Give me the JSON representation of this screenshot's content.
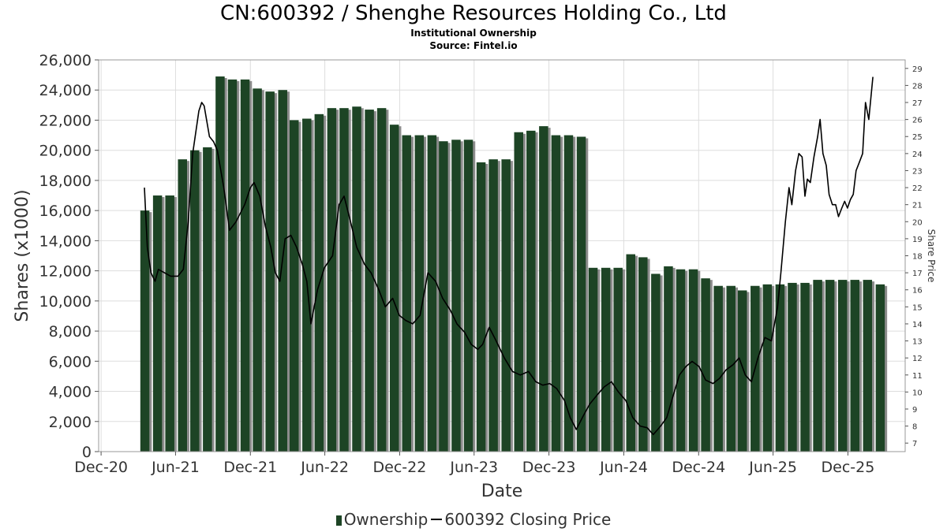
{
  "title": "CN:600392 / Shenghe Resources Holding Co., Ltd",
  "subtitle": "Institutional Ownership",
  "source": "Source: Fintel.io",
  "legend": {
    "ownership": "Ownership",
    "price": "600392 Closing Price"
  },
  "colors": {
    "bar": "#1d4425",
    "bar_shadow": "#8c8c8c",
    "price_line": "#000000",
    "grid": "#dddddd",
    "axis_text": "#333333"
  },
  "chart_data": {
    "type": "bar",
    "xlabel": "Date",
    "ylabel": "Shares (x1000)",
    "y2label": "Share Price",
    "ylim": [
      0,
      26000
    ],
    "y2lim": [
      6.5,
      29.5
    ],
    "y_ticks": [
      0,
      2000,
      4000,
      6000,
      8000,
      10000,
      12000,
      14000,
      16000,
      18000,
      20000,
      22000,
      24000,
      26000
    ],
    "y_tick_labels": [
      "0",
      "2,000",
      "4,000",
      "6,000",
      "8,000",
      "10,000",
      "12,000",
      "14,000",
      "16,000",
      "18,000",
      "20,000",
      "22,000",
      "24,000",
      "26,000"
    ],
    "y2_ticks": [
      7,
      8,
      9,
      10,
      11,
      12,
      13,
      14,
      15,
      16,
      17,
      18,
      19,
      20,
      21,
      22,
      23,
      24,
      25,
      26,
      27,
      28,
      29
    ],
    "xlim": [
      "2020-11-25",
      "2026-04-20"
    ],
    "x_ticks": [
      "2020-12-01",
      "2021-06-01",
      "2021-12-01",
      "2022-06-01",
      "2022-12-01",
      "2023-06-01",
      "2023-12-01",
      "2024-06-01",
      "2024-12-01",
      "2025-06-01",
      "2025-12-01"
    ],
    "x_tick_labels": [
      "Dec-20",
      "Jun-21",
      "Dec-21",
      "Jun-22",
      "Dec-22",
      "Jun-23",
      "Dec-23",
      "Jun-24",
      "Dec-24",
      "Jun-25",
      "Dec-25"
    ],
    "grid": true,
    "legend_position": "bottom",
    "series": [
      {
        "name": "Ownership",
        "type": "bar",
        "x": [
          "2021-03-18",
          "2021-04-18",
          "2021-05-18",
          "2021-06-18",
          "2021-07-18",
          "2021-08-18",
          "2021-09-18",
          "2021-10-18",
          "2021-11-18",
          "2021-12-18",
          "2022-01-18",
          "2022-02-18",
          "2022-03-18",
          "2022-04-18",
          "2022-05-18",
          "2022-06-18",
          "2022-07-18",
          "2022-08-18",
          "2022-09-18",
          "2022-10-18",
          "2022-11-18",
          "2022-12-18",
          "2023-01-18",
          "2023-02-18",
          "2023-03-18",
          "2023-04-18",
          "2023-05-18",
          "2023-06-18",
          "2023-07-18",
          "2023-08-18",
          "2023-09-18",
          "2023-10-18",
          "2023-11-18",
          "2023-12-18",
          "2024-01-18",
          "2024-02-18",
          "2024-03-18",
          "2024-04-18",
          "2024-05-18",
          "2024-06-18",
          "2024-07-18",
          "2024-08-18",
          "2024-09-18",
          "2024-10-18",
          "2024-11-18",
          "2024-12-18",
          "2025-01-18",
          "2025-02-18",
          "2025-03-18",
          "2025-04-18",
          "2025-05-18",
          "2025-06-18",
          "2025-07-18",
          "2025-08-18",
          "2025-09-18",
          "2025-10-18",
          "2025-11-18",
          "2025-12-18",
          "2026-01-18",
          "2026-02-18"
        ],
        "values": [
          16000,
          17000,
          17000,
          19400,
          20000,
          20200,
          24900,
          24700,
          24700,
          24100,
          23900,
          24000,
          22000,
          22100,
          22400,
          22800,
          22800,
          22900,
          22700,
          22800,
          21700,
          21000,
          21000,
          21000,
          20600,
          20700,
          20700,
          19200,
          19400,
          19400,
          21200,
          21300,
          21600,
          21000,
          21000,
          20900,
          12200,
          12200,
          12200,
          13100,
          12900,
          11800,
          12300,
          12100,
          12100,
          11500,
          11000,
          11000,
          10700,
          11000,
          11100,
          11100,
          11200,
          11200,
          11400,
          11400,
          11400,
          11400,
          11400,
          11100
        ]
      },
      {
        "name": "600392 Closing Price",
        "type": "line",
        "points": [
          [
            "2021-03-17",
            22.0
          ],
          [
            "2021-03-24",
            18.5
          ],
          [
            "2021-04-02",
            17.0
          ],
          [
            "2021-04-12",
            16.5
          ],
          [
            "2021-04-20",
            17.2
          ],
          [
            "2021-05-05",
            17.0
          ],
          [
            "2021-05-20",
            16.8
          ],
          [
            "2021-06-07",
            16.8
          ],
          [
            "2021-06-20",
            17.2
          ],
          [
            "2021-07-02",
            20.0
          ],
          [
            "2021-07-13",
            24.0
          ],
          [
            "2021-07-28",
            26.5
          ],
          [
            "2021-08-04",
            27.0
          ],
          [
            "2021-08-10",
            26.8
          ],
          [
            "2021-08-23",
            25.0
          ],
          [
            "2021-09-02",
            24.7
          ],
          [
            "2021-09-11",
            24.2
          ],
          [
            "2021-09-27",
            22.0
          ],
          [
            "2021-10-11",
            19.5
          ],
          [
            "2021-10-27",
            20.0
          ],
          [
            "2021-11-17",
            21.0
          ],
          [
            "2021-12-01",
            22.0
          ],
          [
            "2021-12-10",
            22.3
          ],
          [
            "2021-12-24",
            21.5
          ],
          [
            "2022-01-07",
            19.7
          ],
          [
            "2022-01-20",
            18.5
          ],
          [
            "2022-01-31",
            17.0
          ],
          [
            "2022-02-11",
            16.5
          ],
          [
            "2022-02-24",
            19.0
          ],
          [
            "2022-03-10",
            19.2
          ],
          [
            "2022-03-24",
            18.5
          ],
          [
            "2022-04-07",
            17.5
          ],
          [
            "2022-04-18",
            16.5
          ],
          [
            "2022-04-28",
            14.0
          ],
          [
            "2022-05-14",
            16.0
          ],
          [
            "2022-05-31",
            17.3
          ],
          [
            "2022-06-20",
            18.0
          ],
          [
            "2022-07-06",
            21.0
          ],
          [
            "2022-07-18",
            21.5
          ],
          [
            "2022-08-03",
            20.0
          ],
          [
            "2022-08-18",
            18.5
          ],
          [
            "2022-09-06",
            17.5
          ],
          [
            "2022-09-22",
            17.0
          ],
          [
            "2022-10-11",
            16.0
          ],
          [
            "2022-10-27",
            15.0
          ],
          [
            "2022-11-14",
            15.5
          ],
          [
            "2022-11-30",
            14.5
          ],
          [
            "2022-12-16",
            14.2
          ],
          [
            "2023-01-02",
            14.0
          ],
          [
            "2023-01-20",
            14.5
          ],
          [
            "2023-02-08",
            17.0
          ],
          [
            "2023-02-27",
            16.5
          ],
          [
            "2023-03-16",
            15.5
          ],
          [
            "2023-04-04",
            14.8
          ],
          [
            "2023-04-20",
            14.0
          ],
          [
            "2023-05-09",
            13.5
          ],
          [
            "2023-05-25",
            12.8
          ],
          [
            "2023-06-10",
            12.5
          ],
          [
            "2023-06-22",
            12.8
          ],
          [
            "2023-07-08",
            13.8
          ],
          [
            "2023-07-25",
            13.0
          ],
          [
            "2023-08-14",
            12.0
          ],
          [
            "2023-09-03",
            11.2
          ],
          [
            "2023-09-22",
            11.0
          ],
          [
            "2023-10-12",
            11.2
          ],
          [
            "2023-10-30",
            10.6
          ],
          [
            "2023-11-16",
            10.4
          ],
          [
            "2023-12-03",
            10.5
          ],
          [
            "2023-12-20",
            10.2
          ],
          [
            "2024-01-08",
            9.5
          ],
          [
            "2024-01-22",
            8.5
          ],
          [
            "2024-02-06",
            7.8
          ],
          [
            "2024-02-23",
            8.6
          ],
          [
            "2024-03-10",
            9.3
          ],
          [
            "2024-03-27",
            9.8
          ],
          [
            "2024-04-14",
            10.3
          ],
          [
            "2024-05-02",
            10.6
          ],
          [
            "2024-05-19",
            10.0
          ],
          [
            "2024-06-06",
            9.5
          ],
          [
            "2024-06-23",
            8.5
          ],
          [
            "2024-07-11",
            8.0
          ],
          [
            "2024-07-28",
            7.9
          ],
          [
            "2024-08-12",
            7.5
          ],
          [
            "2024-08-30",
            8.0
          ],
          [
            "2024-09-14",
            8.5
          ],
          [
            "2024-09-30",
            9.8
          ],
          [
            "2024-10-15",
            11.0
          ],
          [
            "2024-10-31",
            11.5
          ],
          [
            "2024-11-15",
            11.8
          ],
          [
            "2024-12-02",
            11.5
          ],
          [
            "2024-12-18",
            10.7
          ],
          [
            "2025-01-05",
            10.5
          ],
          [
            "2025-01-21",
            10.8
          ],
          [
            "2025-02-06",
            11.3
          ],
          [
            "2025-02-23",
            11.6
          ],
          [
            "2025-03-10",
            12.0
          ],
          [
            "2025-03-25",
            11.0
          ],
          [
            "2025-04-09",
            10.6
          ],
          [
            "2025-04-25",
            12.0
          ],
          [
            "2025-05-12",
            13.2
          ],
          [
            "2025-05-28",
            13.0
          ],
          [
            "2025-06-12",
            15.0
          ],
          [
            "2025-06-20",
            17.0
          ],
          [
            "2025-07-01",
            20.0
          ],
          [
            "2025-07-10",
            22.0
          ],
          [
            "2025-07-17",
            21.0
          ],
          [
            "2025-07-26",
            23.0
          ],
          [
            "2025-08-03",
            24.0
          ],
          [
            "2025-08-11",
            23.8
          ],
          [
            "2025-08-18",
            21.5
          ],
          [
            "2025-08-24",
            22.5
          ],
          [
            "2025-08-31",
            22.3
          ],
          [
            "2025-09-09",
            23.8
          ],
          [
            "2025-09-18",
            25.0
          ],
          [
            "2025-09-24",
            26.0
          ],
          [
            "2025-10-01",
            24.0
          ],
          [
            "2025-10-09",
            23.3
          ],
          [
            "2025-10-16",
            21.6
          ],
          [
            "2025-10-24",
            21.0
          ],
          [
            "2025-11-01",
            21.0
          ],
          [
            "2025-11-08",
            20.3
          ],
          [
            "2025-11-16",
            20.8
          ],
          [
            "2025-11-23",
            21.2
          ],
          [
            "2025-11-30",
            20.8
          ],
          [
            "2025-12-07",
            21.3
          ],
          [
            "2025-12-14",
            21.6
          ],
          [
            "2025-12-21",
            23.0
          ],
          [
            "2025-12-29",
            23.5
          ],
          [
            "2026-01-06",
            24.0
          ],
          [
            "2026-01-13",
            27.0
          ],
          [
            "2026-01-21",
            26.0
          ],
          [
            "2026-01-31",
            28.5
          ]
        ]
      }
    ]
  }
}
